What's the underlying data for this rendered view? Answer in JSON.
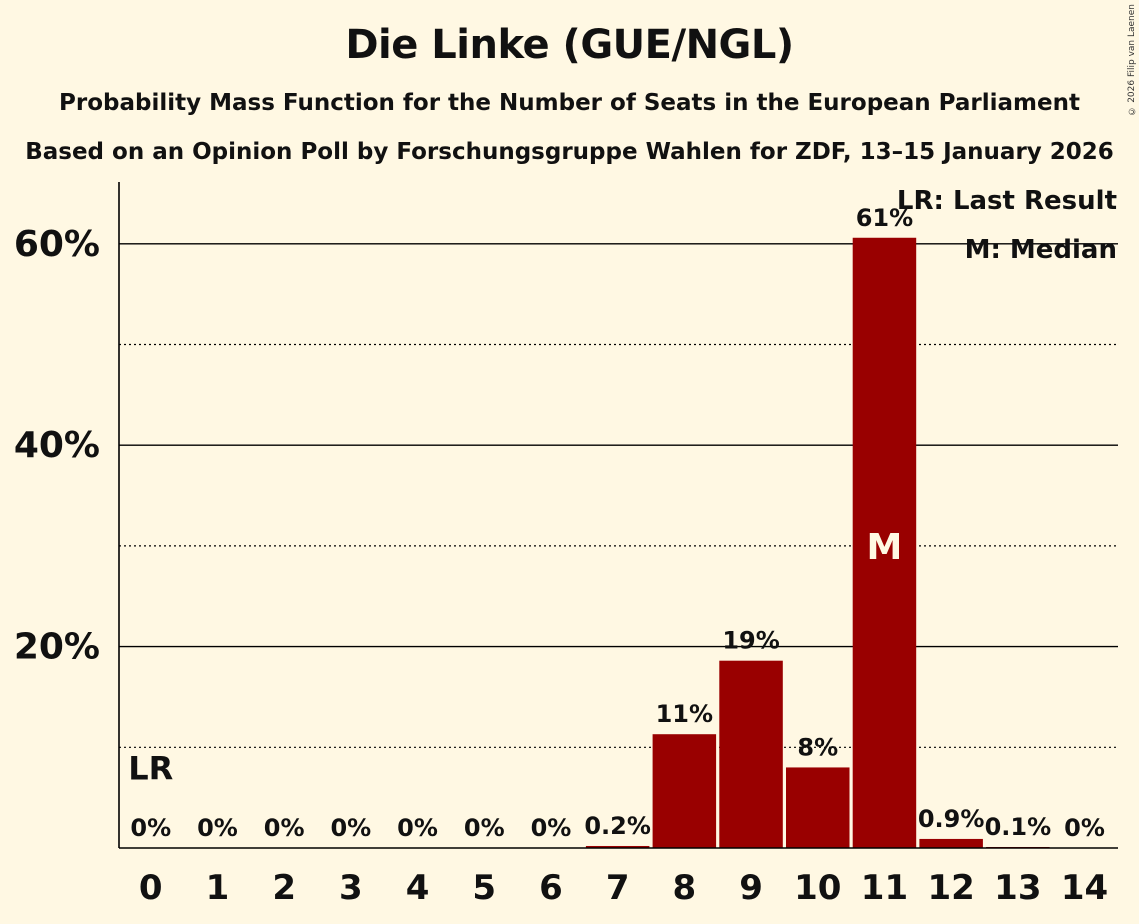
{
  "title": "Die Linke (GUE/NGL)",
  "subtitle": "Probability Mass Function for the Number of Seats in the European Parliament",
  "subtitle2": "Based on an Opinion Poll by Forschungsgruppe Wahlen for ZDF, 13–15 January 2026",
  "copyright": "© 2026 Filip van Laenen",
  "chart_data": {
    "type": "bar",
    "title": "Die Linke (GUE/NGL)",
    "xlabel": "",
    "ylabel": "",
    "categories": [
      "0",
      "1",
      "2",
      "3",
      "4",
      "5",
      "6",
      "7",
      "8",
      "9",
      "10",
      "11",
      "12",
      "13",
      "14"
    ],
    "values": [
      0,
      0,
      0,
      0,
      0,
      0,
      0,
      0.2,
      11.3,
      18.6,
      8.0,
      60.6,
      0.9,
      0.1,
      0
    ],
    "data_labels": [
      "0%",
      "0%",
      "0%",
      "0%",
      "0%",
      "0%",
      "0%",
      "0.2%",
      "11%",
      "19%",
      "8%",
      "61%",
      "0.9%",
      "0.1%",
      "0%"
    ],
    "ylim": [
      0,
      66
    ],
    "y_major_ticks": [
      20,
      40,
      60
    ],
    "y_major_tick_labels": [
      "20%",
      "40%",
      "60%"
    ],
    "y_minor_gridlines": [
      10,
      30,
      50
    ],
    "bar_color": "#990000",
    "last_result_seat": "0",
    "last_result_marker": "LR",
    "median_seat": "11",
    "median_marker": "M",
    "legend": [
      "LR: Last Result",
      "M: Median"
    ],
    "legend_position": "top-right"
  }
}
